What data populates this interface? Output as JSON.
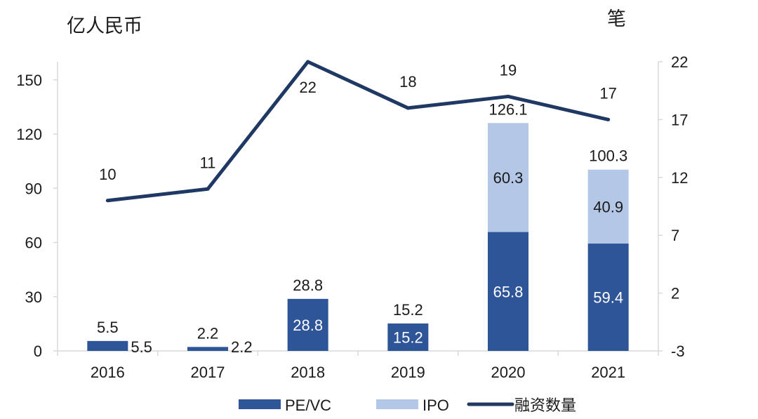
{
  "chart_data": {
    "type": "bar",
    "left_axis_title": "亿人民币",
    "right_axis_title": "笔",
    "categories": [
      "2016",
      "2017",
      "2018",
      "2019",
      "2020",
      "2021"
    ],
    "series": [
      {
        "name": "PE/VC",
        "kind": "bar",
        "axis": "left",
        "values": [
          5.5,
          2.2,
          28.8,
          15.2,
          65.8,
          59.4
        ]
      },
      {
        "name": "IPO",
        "kind": "bar",
        "axis": "left",
        "values": [
          0,
          0,
          0,
          0,
          60.3,
          40.9
        ]
      },
      {
        "name": "融资数量",
        "kind": "line",
        "axis": "right",
        "values": [
          10,
          11,
          22,
          18,
          19,
          17
        ]
      }
    ],
    "totals": [
      5.5,
      2.2,
      28.8,
      15.2,
      126.1,
      100.3
    ],
    "stacked": true,
    "ylim_left": [
      0,
      160
    ],
    "yticks_left": [
      "0",
      "30",
      "60",
      "90",
      "120",
      "150"
    ],
    "ylim_right": [
      -3,
      22
    ],
    "yticks_right": [
      "-3",
      "2",
      "7",
      "12",
      "17",
      "22"
    ],
    "grid": false,
    "legend_position": "bottom",
    "colors": {
      "PE/VC": "#2e5597",
      "IPO": "#b4c7e7",
      "融资数量": "#1f3864",
      "axis": "#d9d9d9"
    }
  }
}
